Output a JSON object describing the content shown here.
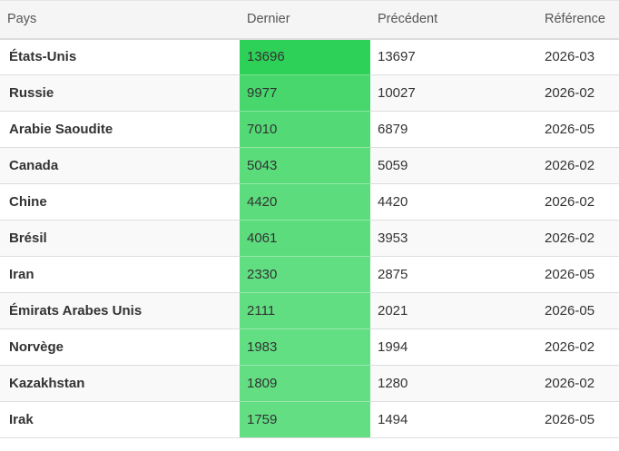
{
  "columns": {
    "country": "Pays",
    "last": "Dernier",
    "previous": "Précédent",
    "reference": "Référence"
  },
  "colors": {
    "heat_max": "#2ed158",
    "heat_min": "#63de83"
  },
  "rows": [
    {
      "country": "États-Unis",
      "last": "13696",
      "previous": "13697",
      "reference": "2026-03",
      "last_value": 13696
    },
    {
      "country": "Russie",
      "last": "9977",
      "previous": "10027",
      "reference": "2026-02",
      "last_value": 9977
    },
    {
      "country": "Arabie Saoudite",
      "last": "7010",
      "previous": "6879",
      "reference": "2026-05",
      "last_value": 7010
    },
    {
      "country": "Canada",
      "last": "5043",
      "previous": "5059",
      "reference": "2026-02",
      "last_value": 5043
    },
    {
      "country": "Chine",
      "last": "4420",
      "previous": "4420",
      "reference": "2026-02",
      "last_value": 4420
    },
    {
      "country": "Brésil",
      "last": "4061",
      "previous": "3953",
      "reference": "2026-02",
      "last_value": 4061
    },
    {
      "country": "Iran",
      "last": "2330",
      "previous": "2875",
      "reference": "2026-05",
      "last_value": 2330
    },
    {
      "country": "Émirats Arabes Unis",
      "last": "2111",
      "previous": "2021",
      "reference": "2026-05",
      "last_value": 2111
    },
    {
      "country": "Norvège",
      "last": "1983",
      "previous": "1994",
      "reference": "2026-02",
      "last_value": 1983
    },
    {
      "country": "Kazakhstan",
      "last": "1809",
      "previous": "1280",
      "reference": "2026-02",
      "last_value": 1809
    },
    {
      "country": "Irak",
      "last": "1759",
      "previous": "1494",
      "reference": "2026-05",
      "last_value": 1759
    }
  ]
}
